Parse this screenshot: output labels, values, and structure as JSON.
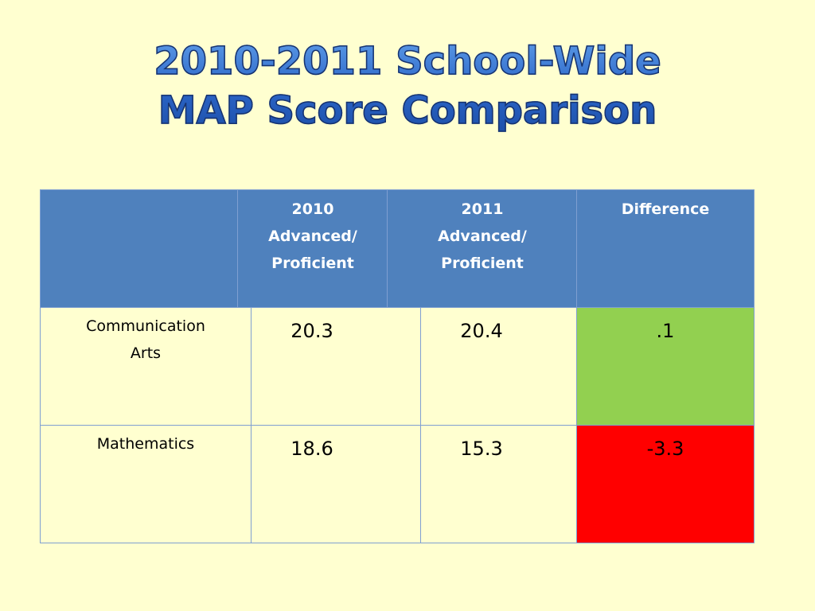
{
  "title": {
    "line1": "2010-2011 School-Wide",
    "line2": "MAP Score Comparison"
  },
  "table": {
    "headers": {
      "col1": "2010 Advanced/ Proficient",
      "col1_lines": [
        "2010",
        "Advanced/",
        "Proficient"
      ],
      "col2_lines": [
        "2011",
        "Advanced/",
        "Proficient"
      ],
      "col3": "Difference"
    },
    "rows": [
      {
        "subject_lines": [
          "Communication",
          "Arts"
        ],
        "y2010": "20.3",
        "y2011": "20.4",
        "difference": ".1"
      },
      {
        "subject_lines": [
          "Mathematics"
        ],
        "y2010": "18.6",
        "y2011": "15.3",
        "difference": "-3.3"
      }
    ]
  },
  "colors": {
    "background": "#ffffd0",
    "header": "#4f81bd",
    "positive": "#92d050",
    "negative": "#ff0000"
  }
}
